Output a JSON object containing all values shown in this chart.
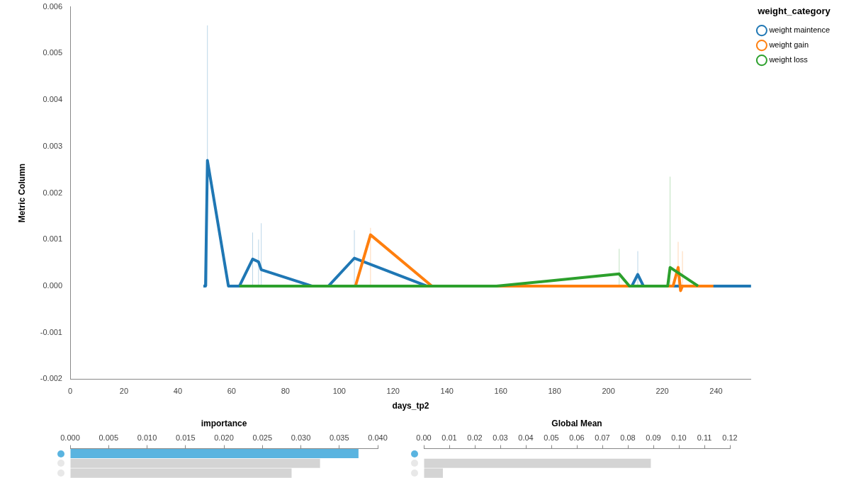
{
  "chart_data": [
    {
      "type": "line",
      "xlabel": "days_tp2",
      "ylabel": "Metric Column",
      "legend_title": "weight_category",
      "legend": "top right",
      "marker": "none",
      "line_style": "solid",
      "grid": false,
      "xlim": [
        0,
        253
      ],
      "xticks": [
        0,
        20,
        40,
        60,
        80,
        100,
        120,
        140,
        160,
        180,
        200,
        220,
        240
      ],
      "ylim": [
        -0.002,
        0.006
      ],
      "yticks": [
        -0.002,
        -0.001,
        {
          "value": 0,
          "label": "0.000"
        },
        0.001,
        0.002,
        0.003,
        0.004,
        0.005,
        0.006
      ],
      "series": [
        {
          "name": "weight maintence",
          "color": "#1f77b4",
          "x": [
            49.5,
            50.3,
            51,
            58.8,
            62.9,
            67.8,
            70,
            71,
            89.8,
            96,
            105.6,
            132.5,
            208.7,
            210.9,
            213,
            253
          ],
          "values": [
            0,
            0,
            0.0027,
            0,
            0,
            0.00058,
            0.00052,
            0.00035,
            0,
            0,
            0.0006,
            0,
            0,
            0.00025,
            0,
            0
          ],
          "errors": [
            null,
            null,
            [
              0,
              0.0056
            ],
            null,
            null,
            [
              0,
              0.00115
            ],
            [
              0,
              0.001
            ],
            [
              0,
              0.00135
            ],
            null,
            null,
            [
              0,
              0.0012
            ],
            null,
            null,
            [
              0,
              0.00075
            ],
            null,
            null
          ]
        },
        {
          "name": "weight gain",
          "color": "#ff7f0e",
          "x": [
            106,
            111.6,
            134.4,
            224,
            225.9,
            226.8,
            227.5,
            239
          ],
          "values": [
            0,
            0.0011,
            0,
            0,
            0.0004,
            -0.0001,
            0,
            0
          ],
          "errors": [
            null,
            [
              0,
              0.00125
            ],
            null,
            null,
            [
              0,
              0.00095
            ],
            null,
            [
              0,
              0.00075
            ],
            null
          ]
        },
        {
          "name": "weight loss",
          "color": "#2ca02c",
          "x": [
            62.9,
            158.4,
            204,
            207.8,
            222,
            222.9,
            233.3
          ],
          "values": [
            0,
            0,
            0.00026,
            0,
            0,
            0.0004,
            0
          ],
          "errors": [
            null,
            null,
            [
              0,
              0.0008
            ],
            null,
            null,
            [
              0,
              0.00235
            ],
            null
          ]
        }
      ]
    },
    {
      "type": "bar",
      "orientation": "horizontal",
      "title": "importance",
      "tick_labels": "x",
      "grid": false,
      "legend": false,
      "categories": [
        null,
        null,
        null
      ],
      "values": [
        0.0375,
        0.0325,
        0.0288
      ],
      "colors": [
        "#5ab4e0",
        "#d4d4d4",
        "#d4d4d4"
      ],
      "xlim": [
        0,
        0.04
      ],
      "xticks": [
        {
          "value": 0,
          "label": "0.000"
        },
        0.005,
        {
          "value": 0.01,
          "label": "0.010"
        },
        0.015,
        {
          "value": 0.02,
          "label": "0.020"
        },
        0.025,
        {
          "value": 0.03,
          "label": "0.030"
        },
        0.035,
        {
          "value": 0.04,
          "label": "0.040"
        }
      ]
    },
    {
      "type": "bar",
      "orientation": "horizontal",
      "title": "Global Mean",
      "tick_labels": "x",
      "grid": false,
      "legend": false,
      "categories": [
        null,
        null,
        null
      ],
      "values": [
        0,
        0.089,
        0.0075
      ],
      "colors": [
        "#5ab4e0",
        "#d4d4d4",
        "#d4d4d4"
      ],
      "xlim": [
        0,
        0.12
      ],
      "xticks": [
        {
          "value": 0,
          "label": "0.00"
        },
        0.01,
        0.02,
        0.03,
        0.04,
        0.05,
        0.06,
        0.07,
        0.08,
        0.09,
        {
          "value": 0.1,
          "label": "0.10"
        },
        0.11,
        0.12
      ]
    }
  ]
}
